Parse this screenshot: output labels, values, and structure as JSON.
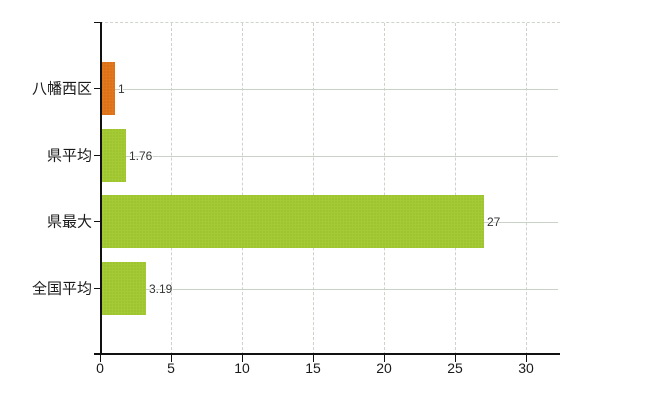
{
  "chart_data": {
    "type": "bar",
    "orientation": "horizontal",
    "title": "",
    "xlabel": "",
    "ylabel": "",
    "categories": [
      "八幡西区",
      "県平均",
      "県最大",
      "全国平均"
    ],
    "values": [
      1,
      1.76,
      27,
      3.19
    ],
    "value_labels": [
      "1",
      "1.76",
      "27",
      "3.19"
    ],
    "bar_color_keys": [
      "orange",
      "green",
      "green",
      "green"
    ],
    "xlim": [
      0,
      32.4
    ],
    "xticks": [
      0,
      5,
      10,
      15,
      20,
      25,
      30
    ],
    "xtick_labels": [
      "0",
      "5",
      "10",
      "15",
      "20",
      "25",
      "30"
    ],
    "grid": {
      "vertical": "dashed",
      "horizontal": "solid",
      "top_border": "dashed"
    },
    "legend_position": "none"
  },
  "colors": {
    "bar_orange": "#e2771c",
    "bar_green": "#a4ca35",
    "grid_solid": "#c8d2c6",
    "grid_dashed": "#cdd2ca",
    "axis": "#111111",
    "label_text": "#1a1a1a",
    "value_text": "#333333",
    "background": "#ffffff"
  }
}
